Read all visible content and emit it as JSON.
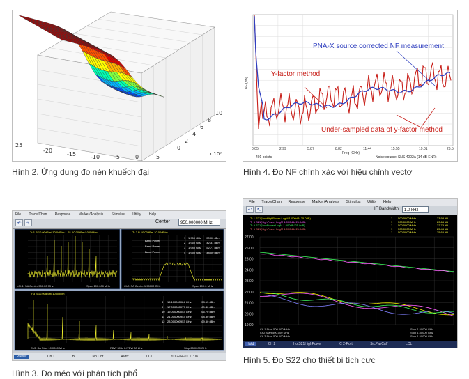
{
  "captions": {
    "fig2": "Hình 2. Ứng dụng đo nén khuếch đại",
    "fig4": "Hình 4. Đo NF chính xác với hiệu chỉnh vectơ",
    "fig3": "Hình 3. Đo méo với phân tích phổ",
    "fig5": "Hình 5. Đo S22 cho thiết bị tích cực"
  },
  "fig2": {
    "y_ticks": [
      "25",
      "-20",
      "-15",
      "-10",
      "-5",
      "0",
      "5"
    ],
    "z_ticks": [
      "0",
      "2",
      "4",
      "6",
      "8",
      "10"
    ],
    "exponent": "x 10⁹",
    "colors": [
      "#0000c8",
      "#0050ff",
      "#00b4ff",
      "#00ffb4",
      "#80ff40",
      "#ffff00",
      "#ffb000",
      "#ff5000",
      "#e00000",
      "#b40000"
    ]
  },
  "fig4": {
    "label_pna": "PNA-X source corrected NF measurement",
    "label_yfactor": "Y-factor method",
    "label_under": "Under-sampled data of y-factor method",
    "footer_left": "401 points",
    "footer_right": "Noise source: SNS 4002A (14 dB ENR)",
    "xlabel": "Freq (GHz)",
    "ylabel": "NF (dB)",
    "x_ticks": [
      "0.05",
      "2.99",
      "5.87",
      "8.82",
      "11.44",
      "15.55",
      "19.01",
      "26.5"
    ],
    "accent_red": "#c8201a",
    "accent_blue": "#3040c0"
  },
  "fig3": {
    "menu": [
      "File",
      "Trace/Chan",
      "Response",
      "Marker/Analysis",
      "Stimulus",
      "Utility",
      "Help"
    ],
    "center_label": "Center",
    "center_value": "950.000000 MHz",
    "status": [
      "Preset",
      "Ch 1",
      "B",
      "No Cor",
      "4Vrrr",
      "LCL",
      "2012-04-01 11:08"
    ],
    "panel_tl_head": "Tr 1 B 10.00dBm/ 10.0dB/m  1 R1 10.00dBm/10.0dB/m",
    "panel_tl_foot_left": "<Ch1: SA Center  950.00 MHz",
    "panel_tl_foot_right": "Span  100.000 MHz",
    "panel_tr_head": "Tr 2  B 10.00dBm 10.00dB/m",
    "panel_tr_markers": [
      {
        "label": "1",
        "freq": "1.950 GHz",
        "val": "-50.00 dBm"
      },
      {
        "label": "2",
        "freq": "1.960 GHz",
        "val": "-42.31 dBm"
      },
      {
        "label": "3",
        "freq": "1.940 GHz",
        "val": "-52.77 dBm"
      },
      {
        "label": "4",
        "freq": "1.950 GHz",
        "val": "-48.00 dBm"
      }
    ],
    "band_labels": [
      "Band Power",
      "Band Power",
      "Band Power"
    ],
    "panel_tr_foot_left": "Ch2: SA Center  1.95000 GHz",
    "panel_tr_foot_right": "Span  100.0 MHz",
    "panel_bot_head": "Tr 3  B 10.00dBm/ 10.0dB/m",
    "panel_bot_markers": [
      {
        "label": "8",
        "freq": "15.100000024 GHz",
        "val": "-58.13 dBm"
      },
      {
        "label": "9",
        "freq": "17.000000077 GHz",
        "val": "-60.40 dBm"
      },
      {
        "label": "10",
        "freq": "19.000000053 GHz",
        "val": "-66.70 dBm"
      },
      {
        "label": "11",
        "freq": "21.000000953 GHz",
        "val": "-68.80 dBm"
      },
      {
        "label": "12",
        "freq": "23.000000953 GHz",
        "val": "-69.50 dBm"
      }
    ],
    "panel_bot_foot_left": "Ch3: SA Start  10.0000 MHz",
    "panel_bot_foot_mid": "RBW 30 kHz/VBW 30 kHz",
    "panel_bot_foot_right": "Stop 25.0000 GHz"
  },
  "fig5": {
    "menu": [
      "File",
      "Trace/Chan",
      "Response",
      "Marker/Analysis",
      "Stimulus",
      "Utility",
      "Help"
    ],
    "ifbw_label": "IF Bandwidth",
    "ifbw_value": "1.0 kHz",
    "y_ticks": [
      "27.00",
      "26.00",
      "25.00",
      "24.00",
      "23.00",
      "22.00",
      "21.00",
      "20.00",
      "19.00"
    ],
    "traces": [
      {
        "label": "Tr 1  S21(LowHighPower LogM 1.000dB/ 25.0dB)",
        "color": "#f0f000"
      },
      {
        "label": "Tr 5  S21(HighPower LogM 1.000dB/ 25.0dB)",
        "color": "#ff60ff"
      },
      {
        "label": "Tr 9  S21(LowPower LogM 1.000dB/ 25.0dB)",
        "color": "#40ff60"
      },
      {
        "label": "Tr 6  S21(HighPower LogM 1.000dB/ 25.0dB)",
        "color": "#ff7070"
      }
    ],
    "markers": [
      {
        "id": "1",
        "freq": "500.0000 MHz",
        "val": "23.93 dB"
      },
      {
        "id": "1",
        "freq": "500.0000 MHz",
        "val": "23.64 dB"
      },
      {
        "id": "1",
        "freq": "500.0000 MHz",
        "val": "22.73 dB"
      },
      {
        "id": "1",
        "freq": "500.0000 MHz",
        "val": "25.43 dB"
      },
      {
        "id": "1",
        "freq": "500.0000 MHz",
        "val": "25.65 dB"
      }
    ],
    "foot_rows": [
      {
        "left": "Ch 1  Start  500.000 MHz",
        "right": "Stop  1.50000 GHz"
      },
      {
        "left": "Ch2  Start  500.000 MHz",
        "right": "Stop  1.50000 GHz"
      },
      {
        "left": "Ch 3  Start  500.000 MHz",
        "right": "Stop  1.50000 GHz"
      }
    ],
    "status": [
      "Hold",
      "Ch 2",
      "HotS21HighPower",
      "C 2-Port",
      "SrcPwrCal*",
      "LCL"
    ]
  }
}
